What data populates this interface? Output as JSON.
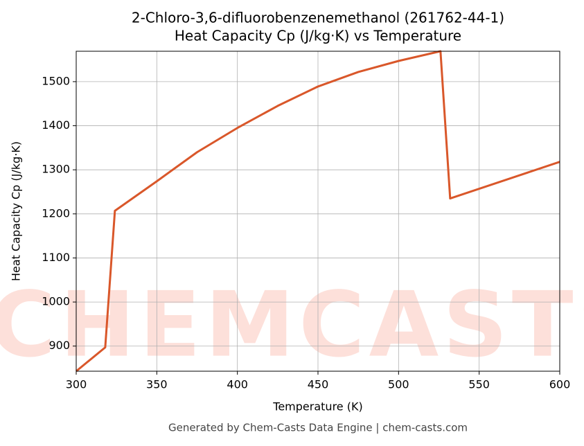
{
  "chart_data": {
    "type": "line",
    "title": "2-Chloro-3,6-difluorobenzenemethanol (261762-44-1)",
    "subtitle": "Heat Capacity Cp (J/kg·K) vs Temperature",
    "x_label": "Temperature (K)",
    "y_label": "Heat Capacity Cp (J/kg·K)",
    "footer": "Generated by Chem-Casts Data Engine | chem-casts.com",
    "watermark": "CHEMCASTS",
    "x": [
      300,
      318,
      324,
      350,
      375,
      400,
      425,
      450,
      475,
      500,
      526,
      532,
      600
    ],
    "series": [
      {
        "name": "Cp",
        "color": "#d9572a",
        "values": [
          843,
          897,
          1207,
          1274,
          1340,
          1395,
          1445,
          1489,
          1522,
          1547,
          1569,
          1235,
          1318
        ]
      }
    ],
    "xlim": [
      300,
      600
    ],
    "xticks": [
      300,
      350,
      400,
      450,
      500,
      550,
      600
    ],
    "ylim": [
      843,
      1569
    ],
    "yticks": [
      900,
      1000,
      1100,
      1200,
      1300,
      1400,
      1500
    ],
    "grid": true
  }
}
